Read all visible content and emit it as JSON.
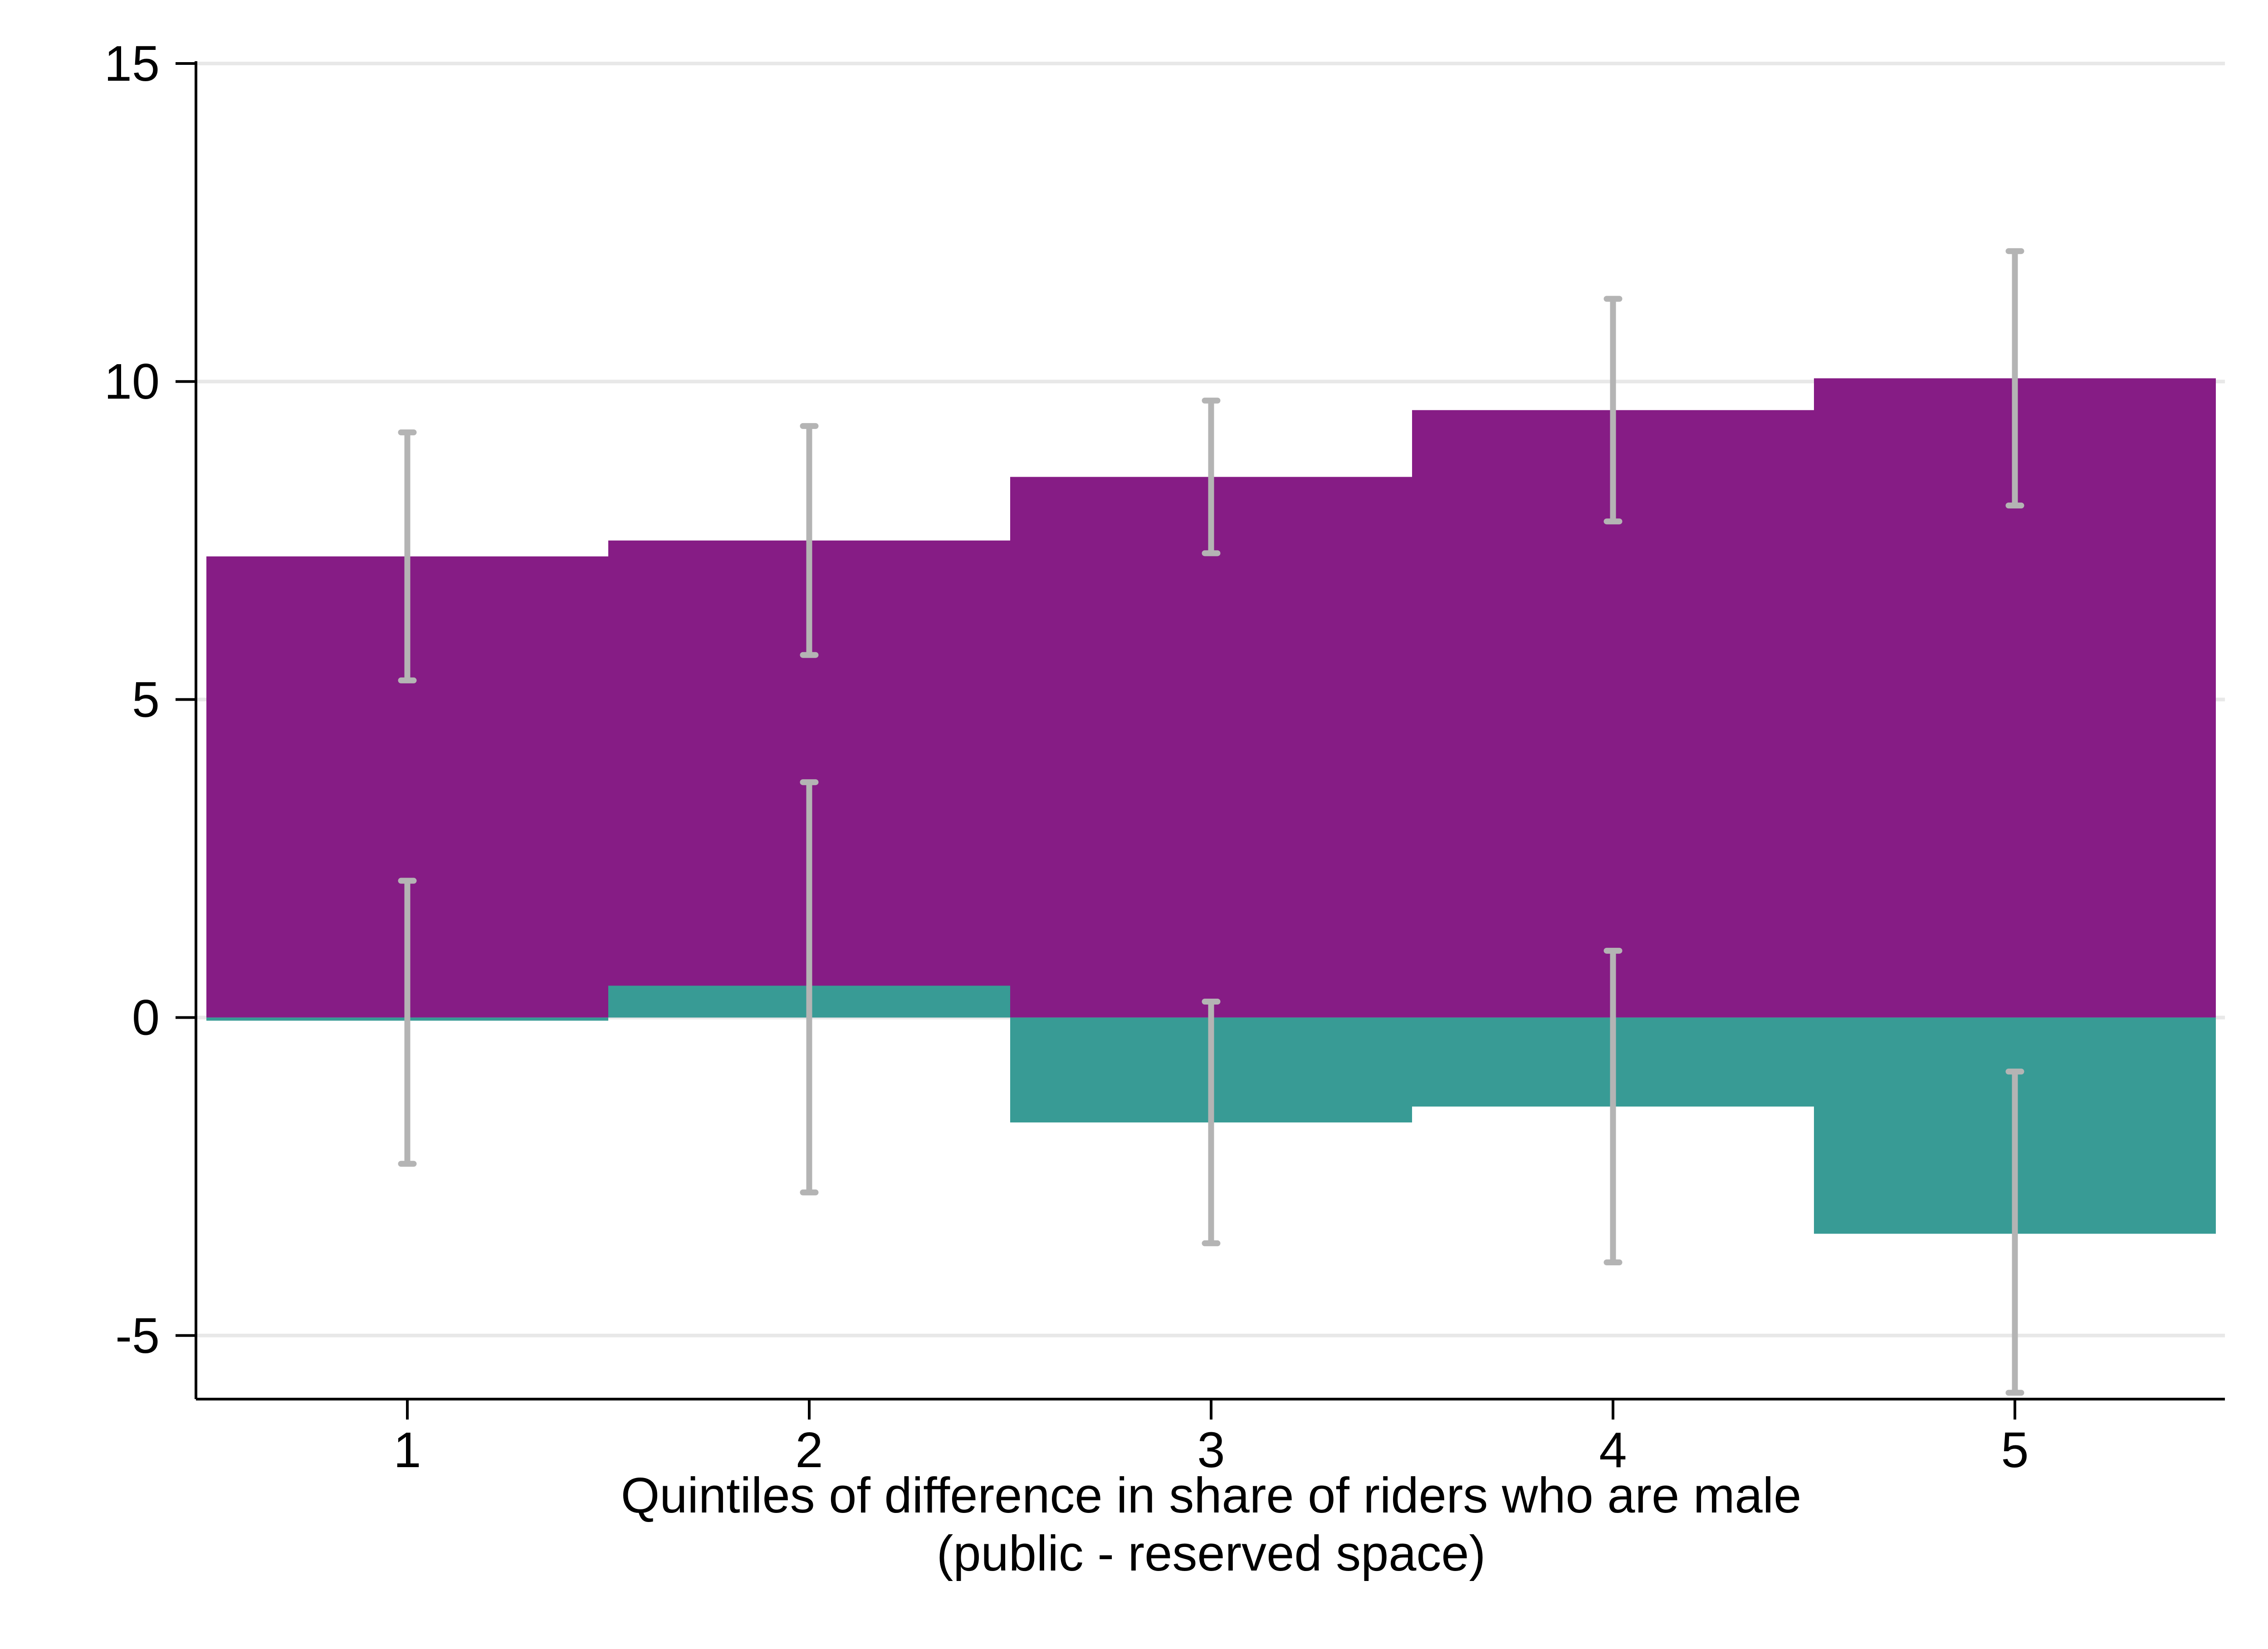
{
  "chart_data": {
    "type": "bar",
    "categories": [
      "1",
      "2",
      "3",
      "4",
      "5"
    ],
    "series": [
      {
        "values": [
          7.25,
          7.5,
          8.5,
          9.55,
          10.05
        ],
        "ci_low": [
          5.3,
          5.7,
          7.3,
          7.8,
          8.05
        ],
        "ci_high": [
          9.2,
          9.3,
          9.7,
          11.3,
          12.05
        ]
      },
      {
        "values": [
          -0.05,
          0.5,
          -1.65,
          -1.4,
          -3.4
        ],
        "ci_low": [
          -2.3,
          -2.75,
          -3.55,
          -3.85,
          -5.9
        ],
        "ci_high": [
          2.15,
          3.7,
          0.25,
          1.05,
          -0.85
        ]
      }
    ],
    "xlabel_lines": [
      "Quintiles of difference in share of riders who are male",
      "(public - reserved space)"
    ],
    "ylabel": "",
    "ylim": [
      -6,
      15
    ],
    "yticks": [
      -5,
      0,
      5,
      10,
      15
    ],
    "grid": true,
    "legend": "none",
    "colors": {
      "series1": "#861c85",
      "series2": "#389b95",
      "error_bar": "#b4b4b4",
      "grid": "#e8e8e8",
      "axis": "#000000"
    }
  }
}
